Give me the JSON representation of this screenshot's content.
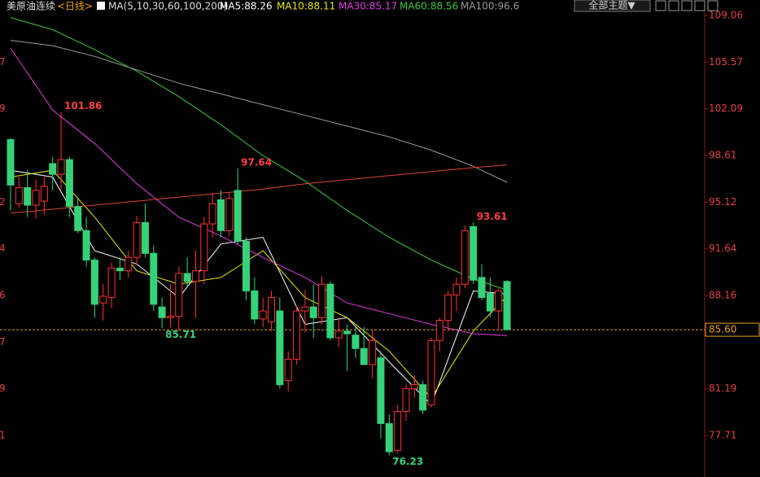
{
  "chart_data": {
    "type": "candlestick",
    "symbol": "美原油连续",
    "period": "<日线>",
    "indicator": "MA(5,10,30,60,100,200)",
    "theme_button": "全部主题▼",
    "ylim": [
      74.61,
      109.36
    ],
    "yticks": [
      109.06,
      105.57,
      102.09,
      98.61,
      95.12,
      91.64,
      88.16,
      81.19,
      77.71
    ],
    "left_axis_clipped": [
      {
        "value": 105.57,
        "label": "7"
      },
      {
        "value": 102.09,
        "label": "9"
      },
      {
        "value": 95.12,
        "label": "2"
      },
      {
        "value": 91.64,
        "label": "4"
      },
      {
        "value": 88.16,
        "label": "6"
      },
      {
        "value": 84.67,
        "label": "7"
      },
      {
        "value": 81.19,
        "label": "9"
      },
      {
        "value": 77.71,
        "label": "1"
      }
    ],
    "last_price": {
      "value": 85.6,
      "label": "85.60"
    },
    "up_color": "#ff3232",
    "down_color": "#36d27a",
    "candles": {
      "open": [
        99.8,
        95.0,
        96.2,
        94.9,
        95.2,
        98.0,
        97.2,
        98.3,
        94.8,
        93.0,
        90.8,
        87.6,
        88.0,
        90.2,
        90.0,
        91.0,
        93.6,
        91.3,
        87.3,
        86.5,
        86.6,
        89.8,
        89.2,
        90.0,
        93.5,
        95.3,
        93.0,
        96.0,
        92.2,
        88.5,
        86.4,
        86.2,
        87.0,
        81.8,
        83.4,
        87.0,
        87.3,
        86.5,
        89.0,
        85.0,
        85.5,
        85.2,
        84.2,
        83.0,
        83.5,
        78.6,
        76.6,
        79.5,
        81.2,
        81.5,
        80.0,
        84.8,
        86.3,
        88.2,
        89.0,
        93.3,
        89.5,
        88.3,
        87.0,
        89.2
      ],
      "high": [
        99.9,
        97.0,
        97.5,
        96.8,
        97.0,
        98.5,
        101.86,
        98.5,
        95.5,
        94.0,
        91.0,
        89.0,
        90.6,
        91.0,
        91.5,
        94.1,
        95.0,
        91.9,
        88.0,
        89.0,
        90.3,
        91.0,
        91.5,
        94.0,
        95.8,
        96.0,
        95.8,
        97.64,
        92.5,
        89.5,
        88.0,
        88.5,
        88.0,
        84.0,
        87.4,
        88.6,
        89.0,
        89.6,
        89.2,
        86.5,
        86.0,
        85.8,
        85.8,
        85.6,
        84.0,
        79.3,
        80.0,
        81.5,
        82.2,
        81.8,
        85.0,
        86.5,
        88.5,
        89.5,
        93.4,
        93.61,
        90.5,
        89.5,
        88.7,
        89.3
      ],
      "low": [
        94.5,
        94.7,
        94.0,
        93.9,
        94.2,
        96.0,
        96.0,
        94.0,
        92.8,
        90.3,
        86.5,
        86.3,
        87.2,
        89.3,
        89.5,
        90.4,
        91.0,
        87.0,
        85.71,
        85.8,
        85.5,
        88.8,
        86.5,
        89.0,
        92.5,
        92.5,
        92.6,
        92.0,
        87.8,
        86.0,
        85.8,
        85.5,
        81.2,
        81.0,
        83.0,
        85.4,
        85.0,
        86.0,
        84.8,
        84.3,
        82.5,
        83.5,
        83.0,
        82.0,
        77.5,
        76.23,
        76.4,
        78.8,
        80.5,
        79.3,
        79.8,
        84.0,
        85.5,
        87.0,
        88.7,
        89.0,
        87.8,
        86.5,
        85.6,
        85.6
      ],
      "close": [
        96.4,
        96.2,
        94.9,
        96.0,
        96.3,
        97.2,
        98.3,
        94.8,
        93.0,
        90.8,
        87.5,
        88.1,
        90.2,
        90.0,
        91.0,
        93.6,
        91.3,
        87.5,
        86.5,
        86.6,
        89.8,
        89.2,
        90.0,
        93.5,
        95.0,
        93.0,
        95.4,
        92.2,
        88.5,
        86.4,
        87.0,
        88.0,
        81.5,
        83.4,
        87.0,
        87.3,
        86.5,
        89.0,
        85.0,
        85.5,
        85.3,
        84.2,
        83.0,
        84.8,
        78.6,
        76.5,
        79.5,
        81.2,
        81.5,
        79.6,
        84.8,
        86.3,
        88.2,
        89.0,
        93.0,
        89.3,
        88.0,
        87.0,
        88.5,
        85.6
      ]
    },
    "annotations": [
      101.86,
      97.64,
      93.61,
      85.71,
      76.23
    ],
    "ma_x": [
      0,
      5,
      10,
      15,
      20,
      25,
      30,
      35,
      40,
      45,
      50,
      55,
      59
    ],
    "series": [
      {
        "name": "MA5:88.26",
        "color": "#ffffff",
        "values": [
          97.5,
          97.0,
          91.5,
          90.5,
          88.0,
          92.0,
          92.5,
          86.0,
          86.5,
          83.2,
          80.0,
          88.5,
          88.26
        ]
      },
      {
        "name": "MA10:88.11",
        "color": "#e8e800",
        "values": [
          97.0,
          97.5,
          94.0,
          90.0,
          89.0,
          89.5,
          91.5,
          88.0,
          86.5,
          84.0,
          80.5,
          85.5,
          88.11
        ]
      },
      {
        "name": "MA30:85.17",
        "color": "#e03ce0",
        "values": [
          106.6,
          102.0,
          99.5,
          96.5,
          94.0,
          92.6,
          91.0,
          89.5,
          87.6,
          86.8,
          86.0,
          85.3,
          85.17
        ]
      },
      {
        "name": "MA60:88.56",
        "color": "#3cc83c",
        "values": [
          108.9,
          108.0,
          106.5,
          104.9,
          103.0,
          100.9,
          98.6,
          96.7,
          94.5,
          92.5,
          90.8,
          89.4,
          88.56
        ]
      },
      {
        "name": "MA100:96.6",
        "color": "#9a9a9a",
        "values": [
          107.2,
          106.8,
          106.0,
          105.0,
          104.0,
          103.2,
          102.4,
          101.6,
          100.8,
          100.0,
          99.0,
          97.8,
          96.6
        ]
      },
      {
        "color": "#e0442c",
        "values": [
          94.3,
          94.6,
          94.9,
          95.2,
          95.5,
          95.8,
          96.1,
          96.5,
          96.8,
          97.1,
          97.4,
          97.7,
          97.9
        ]
      }
    ]
  }
}
